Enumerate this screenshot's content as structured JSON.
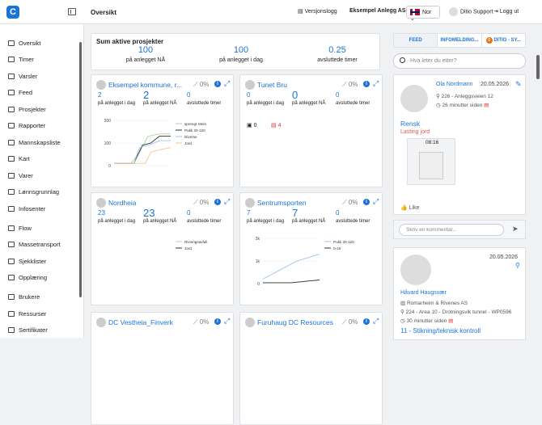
{
  "header": {
    "title": "Oversikt",
    "changelog": "Versjonslogg",
    "site": "Eksempel Anlegg AS",
    "lang": "Nor",
    "user": "Ditio Support",
    "logout": "Logg ut"
  },
  "sidebar": {
    "items": [
      {
        "label": "Oversikt",
        "icon": "home-icon"
      },
      {
        "label": "Timer",
        "icon": "calendar-icon"
      },
      {
        "label": "Varsler",
        "icon": "alert-icon"
      },
      {
        "label": "Feed",
        "icon": "feed-icon"
      },
      {
        "label": "Prosjekter",
        "icon": "projects-icon"
      },
      {
        "label": "Rapporter",
        "icon": "reports-icon"
      },
      {
        "label": "Mannskapsliste",
        "icon": "crew-icon"
      },
      {
        "label": "Kart",
        "icon": "map-icon"
      },
      {
        "label": "Varer",
        "icon": "goods-icon"
      },
      {
        "label": "Lønnsgrunnlag",
        "icon": "payroll-icon"
      },
      {
        "label": "Infosenter",
        "icon": "info-icon"
      },
      {
        "label": "Flow",
        "icon": "flow-icon"
      },
      {
        "label": "Massetransport",
        "icon": "truck-icon"
      },
      {
        "label": "Sjekklister",
        "icon": "checklist-icon"
      },
      {
        "label": "Opplæring",
        "icon": "training-icon"
      },
      {
        "label": "Brukere",
        "icon": "users-icon"
      },
      {
        "label": "Ressurser",
        "icon": "resources-icon"
      },
      {
        "label": "Sertifikater",
        "icon": "certificate-icon"
      }
    ]
  },
  "summary": {
    "title": "Sum aktive prosjekter",
    "stats": [
      {
        "value": "100",
        "label": "på anlegget NÅ"
      },
      {
        "value": "100",
        "label": "på anlegget i dag"
      },
      {
        "value": "0.25",
        "label": "avsluttede timer"
      }
    ]
  },
  "cards": [
    {
      "name": "Eksempel kommune, r...",
      "pct": "0%",
      "a": "2",
      "b": "2",
      "c": "0",
      "la": "på anlegget i dag",
      "lb": "på anlegget NÅ",
      "lc": "avsluttede timer"
    },
    {
      "name": "Tunet Bru",
      "pct": "0%",
      "a": "0",
      "b": "0",
      "c": "0",
      "la": "på anlegget i dag",
      "lb": "på anlegget NÅ",
      "lc": "avsluttede timer",
      "photos": "0",
      "docs": "4"
    },
    {
      "name": "Nordheia",
      "pct": "0%",
      "a": "23",
      "b": "23",
      "c": "0",
      "la": "på anlegget i dag",
      "lb": "på anlegget NÅ",
      "lc": "avsluttede timer"
    },
    {
      "name": "Sentrumsporten",
      "pct": "0%",
      "a": "7",
      "b": "7",
      "c": "0",
      "la": "på anlegget i dag",
      "lb": "på anlegget NÅ",
      "lc": "avsluttede timer"
    },
    {
      "name": "DC Vestheia_Finverk",
      "pct": "0%"
    },
    {
      "name": "Furuhaug DC Resources",
      "pct": "0%"
    }
  ],
  "chart_data": [
    {
      "type": "line",
      "ylim": [
        0,
        200
      ],
      "yticks": [
        "200",
        "100",
        "0"
      ],
      "series": [
        {
          "name": "sprengt Stein",
          "color": "#a8d5a2"
        },
        {
          "name": "Pukk 20-120",
          "color": "#333333"
        },
        {
          "name": "Diverse",
          "color": "#9ec3ef"
        },
        {
          "name": "Jord",
          "color": "#f3c48f"
        }
      ]
    },
    {
      "type": "line",
      "yticks": [],
      "series": [
        {
          "name": "Rivningsavfall",
          "color": "#c9c9c9"
        },
        {
          "name": "Jord",
          "color": "#333333"
        }
      ]
    },
    {
      "type": "line",
      "ylim": [
        0,
        2000
      ],
      "yticks": [
        "2k",
        "1k",
        "0"
      ],
      "series": [
        {
          "name": "Pukk 20-120",
          "color": "#9ec3ef"
        },
        {
          "name": "0-16",
          "color": "#333333"
        }
      ]
    }
  ],
  "right": {
    "tabs": [
      "FEED",
      "INFOMELDING...",
      "DITIO - SY..."
    ],
    "tab_badge": "0",
    "search_placeholder": "Hva leter du etter?",
    "post1": {
      "author": "Ola Nordmann",
      "date": "20.05.2026",
      "location": "226 - Anleggsveien 12",
      "time": "26 minutter siden",
      "title": "Rensk",
      "subtitle": "Lasting jord",
      "video_time": "08:16",
      "like": "Like",
      "comment_placeholder": "Skriv en kommentar..."
    },
    "post2": {
      "date": "20.05.2026",
      "author": "Håvard Haugsvær",
      "company": "Romarheim & Rivenes AS",
      "location": "224 - Area 10 - Drotningsvik tunnel - WP0596",
      "time": "30 minutter siden",
      "title": "11 - Stikning/teknisk kontroll"
    }
  }
}
